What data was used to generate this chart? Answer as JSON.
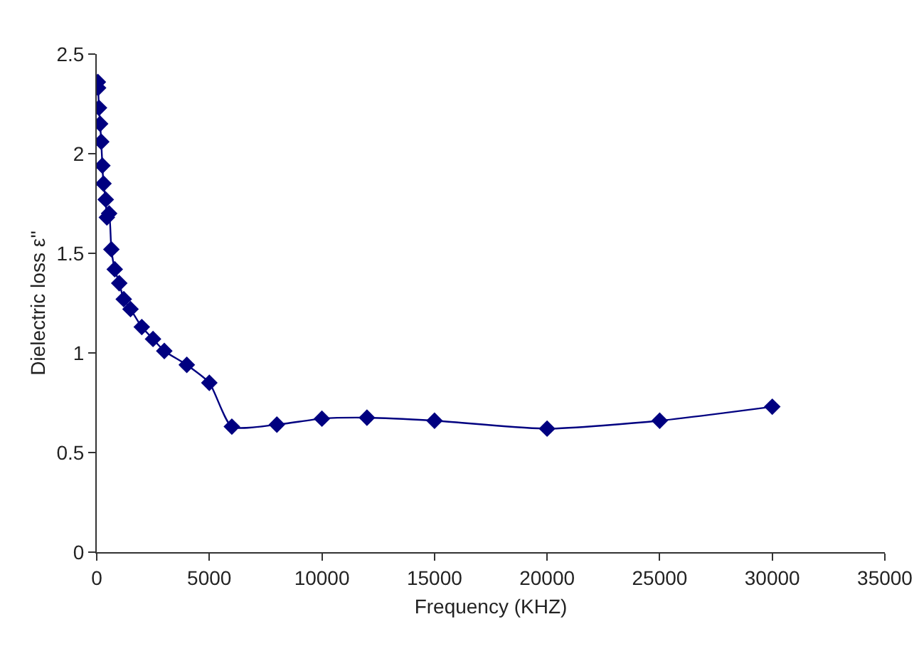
{
  "chart_data": {
    "type": "line",
    "xlabel": "Frequency (KHZ)",
    "ylabel": "Dielectric loss ε''",
    "marker": "diamond",
    "line_style": "solid",
    "grid": false,
    "legend": false,
    "xlim": [
      0,
      35000
    ],
    "xticks": [
      0,
      5000,
      10000,
      15000,
      20000,
      25000,
      30000,
      35000
    ],
    "ylim": [
      0,
      2.5
    ],
    "yticks": [
      0,
      0.5,
      1,
      1.5,
      2,
      2.5
    ],
    "x": [
      50,
      60,
      100,
      150,
      200,
      250,
      300,
      400,
      450,
      550,
      650,
      800,
      1000,
      1200,
      1500,
      2000,
      2500,
      3000,
      4000,
      5000,
      6000,
      8000,
      10000,
      12000,
      15000,
      20000,
      25000,
      30000
    ],
    "series": [
      {
        "color": "#000080",
        "values": [
          2.36,
          2.33,
          2.23,
          2.15,
          2.06,
          1.94,
          1.85,
          1.77,
          1.68,
          1.7,
          1.52,
          1.42,
          1.35,
          1.27,
          1.22,
          1.13,
          1.07,
          1.01,
          0.94,
          0.85,
          0.63,
          0.64,
          0.67,
          0.675,
          0.66,
          0.62,
          0.66,
          0.73
        ]
      }
    ]
  }
}
